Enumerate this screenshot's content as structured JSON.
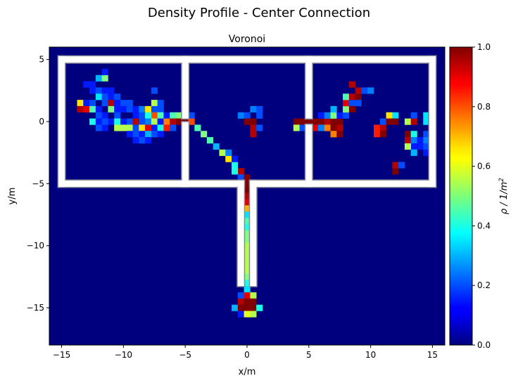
{
  "chart_data": {
    "type": "heatmap",
    "title": "Density Profile - Center Connection",
    "subtitle": "Voronoi",
    "xlabel": "x/m",
    "ylabel": "y/m",
    "xlim": [
      -16,
      16
    ],
    "ylim": [
      -18,
      6
    ],
    "xticks": [
      -15,
      -10,
      -5,
      0,
      5,
      10,
      15
    ],
    "yticks": [
      5,
      0,
      -5,
      -10,
      -15
    ],
    "grid": false,
    "colormap": "jet",
    "background_color": "#00007f",
    "wall_color": "#ffffff",
    "colorbar": {
      "label": "ρ / 1/m²",
      "label_base": "ρ / 1/m",
      "label_exponent": "2",
      "range": [
        0,
        1
      ],
      "ticks": [
        0.0,
        0.2,
        0.4,
        0.6,
        0.8,
        1.0
      ],
      "tick_labels": [
        "0.0",
        "0.2",
        "0.4",
        "0.6",
        "0.8",
        "1.0"
      ]
    },
    "geometry": {
      "left_room": {
        "x": [
          -15,
          -5
        ],
        "y": [
          -5,
          5
        ]
      },
      "center_room": {
        "x": [
          -5,
          5
        ],
        "y": [
          -5,
          5
        ]
      },
      "right_room": {
        "x": [
          5,
          15
        ],
        "y": [
          -5,
          5
        ]
      },
      "corridor": {
        "x": [
          -0.5,
          0.5
        ],
        "y": [
          -13,
          -5
        ]
      },
      "doors": [
        {
          "between": "left-center",
          "x": -5,
          "y": [
            -0.3,
            0.5
          ]
        },
        {
          "between": "center-right",
          "x": 5,
          "y": [
            -0.5,
            0.5
          ]
        },
        {
          "between": "center-corridor",
          "x": [
            -0.5,
            0.5
          ],
          "y": -5
        }
      ]
    },
    "cell_size": 0.5,
    "cells": [
      [
        -13.0,
        3.0,
        0.15
      ],
      [
        -12.5,
        3.0,
        0.15
      ],
      [
        -12.0,
        3.5,
        0.3
      ],
      [
        -11.5,
        3.5,
        0.5
      ],
      [
        -11.5,
        4.0,
        0.15
      ],
      [
        -12.5,
        2.5,
        0.15
      ],
      [
        -12.0,
        2.5,
        0.2
      ],
      [
        -11.5,
        2.5,
        0.15
      ],
      [
        -11.0,
        2.5,
        0.15
      ],
      [
        -12.0,
        2.0,
        0.35
      ],
      [
        -11.5,
        2.0,
        0.2
      ],
      [
        -11.0,
        2.0,
        0.15
      ],
      [
        -10.5,
        2.0,
        0.2
      ],
      [
        -7.5,
        2.5,
        0.2
      ],
      [
        -13.5,
        1.5,
        0.65
      ],
      [
        -13.0,
        1.5,
        0.15
      ],
      [
        -12.5,
        1.5,
        0.2
      ],
      [
        -11.5,
        1.5,
        0.2
      ],
      [
        -11.0,
        1.5,
        0.95
      ],
      [
        -10.5,
        1.5,
        0.15
      ],
      [
        -10.0,
        1.5,
        0.2
      ],
      [
        -9.5,
        1.5,
        0.2
      ],
      [
        -7.5,
        1.5,
        0.55
      ],
      [
        -7.0,
        1.5,
        0.2
      ],
      [
        -13.5,
        1.0,
        0.95
      ],
      [
        -13.0,
        1.0,
        0.9
      ],
      [
        -12.5,
        1.0,
        0.45
      ],
      [
        -12.0,
        1.0,
        0.15
      ],
      [
        -11.0,
        1.0,
        0.5
      ],
      [
        -10.5,
        1.0,
        0.15
      ],
      [
        -10.0,
        1.0,
        0.15
      ],
      [
        -9.5,
        1.0,
        0.2
      ],
      [
        -9.0,
        1.0,
        0.15
      ],
      [
        -8.5,
        1.0,
        0.25
      ],
      [
        -8.0,
        1.0,
        0.65
      ],
      [
        -7.5,
        1.0,
        0.2
      ],
      [
        -7.0,
        1.0,
        0.2
      ],
      [
        -12.0,
        0.5,
        0.2
      ],
      [
        -11.5,
        0.5,
        0.15
      ],
      [
        -10.5,
        0.5,
        0.2
      ],
      [
        -9.0,
        0.5,
        0.15
      ],
      [
        -8.5,
        0.5,
        0.2
      ],
      [
        -7.5,
        0.5,
        0.8
      ],
      [
        -7.0,
        0.5,
        0.45
      ],
      [
        -6.5,
        0.5,
        0.15
      ],
      [
        -5.5,
        0.5,
        0.5
      ],
      [
        -5.0,
        0.5,
        0.35
      ],
      [
        -4.5,
        0.5,
        0.2
      ],
      [
        -8.0,
        0.5,
        0.4
      ],
      [
        -6.0,
        0.5,
        0.45
      ],
      [
        -8.5,
        0.0,
        0.2
      ],
      [
        -9.5,
        0.0,
        0.2
      ],
      [
        -11.0,
        0.0,
        0.15
      ],
      [
        -12.5,
        0.0,
        0.4
      ],
      [
        -12.0,
        0.0,
        0.15
      ],
      [
        -11.5,
        0.0,
        0.2
      ],
      [
        -10.5,
        0.0,
        0.4
      ],
      [
        -10.0,
        0.0,
        0.15
      ],
      [
        -9.0,
        0.0,
        0.95
      ],
      [
        -8.0,
        0.0,
        0.25
      ],
      [
        -7.5,
        0.0,
        0.55
      ],
      [
        -7.0,
        0.0,
        0.15
      ],
      [
        -6.5,
        0.0,
        0.75
      ],
      [
        -6.0,
        0.0,
        0.95
      ],
      [
        -5.5,
        0.0,
        1.0
      ],
      [
        -5.0,
        0.0,
        1.0
      ],
      [
        -4.5,
        0.0,
        0.8
      ],
      [
        -12.0,
        -0.5,
        0.2
      ],
      [
        -11.5,
        -0.5,
        0.15
      ],
      [
        -10.5,
        -0.5,
        0.55
      ],
      [
        -10.0,
        -0.5,
        0.55
      ],
      [
        -9.5,
        -0.5,
        0.55
      ],
      [
        -9.0,
        -0.5,
        0.2
      ],
      [
        -8.5,
        -0.5,
        0.65
      ],
      [
        -8.0,
        -0.5,
        0.9
      ],
      [
        -7.5,
        -0.5,
        0.15
      ],
      [
        -7.0,
        -0.5,
        0.4
      ],
      [
        -6.5,
        -0.5,
        0.85
      ],
      [
        -6.0,
        -0.5,
        0.2
      ],
      [
        -4.0,
        -0.5,
        0.45
      ],
      [
        -9.5,
        -1.0,
        0.15
      ],
      [
        -9.0,
        -1.0,
        0.2
      ],
      [
        -8.5,
        -1.0,
        0.15
      ],
      [
        -8.0,
        -1.0,
        0.3
      ],
      [
        -7.5,
        -1.0,
        0.2
      ],
      [
        -7.0,
        -1.0,
        0.15
      ],
      [
        -3.5,
        -1.0,
        0.5
      ],
      [
        -9.0,
        -1.5,
        0.15
      ],
      [
        -8.5,
        -1.5,
        0.2
      ],
      [
        -8.0,
        -1.5,
        0.15
      ],
      [
        -3.0,
        -1.5,
        0.45
      ],
      [
        -2.5,
        -2.0,
        0.3
      ],
      [
        -2.0,
        -2.5,
        0.55
      ],
      [
        -1.5,
        -3.0,
        0.65
      ],
      [
        -1.5,
        -2.5,
        0.25
      ],
      [
        -1.0,
        -3.5,
        0.4
      ],
      [
        -1.0,
        -3.0,
        0.15
      ],
      [
        -0.5,
        -4.0,
        0.95
      ],
      [
        -1.0,
        -4.0,
        0.4
      ],
      [
        -0.5,
        -4.5,
        0.2
      ],
      [
        0.0,
        -4.5,
        1.0
      ],
      [
        0.0,
        -5.0,
        1.0
      ],
      [
        0.0,
        -5.5,
        1.0
      ],
      [
        0.0,
        -6.0,
        0.95
      ],
      [
        0.0,
        -6.5,
        0.9
      ],
      [
        0.0,
        -7.0,
        0.7
      ],
      [
        0.0,
        -7.5,
        0.35
      ],
      [
        0.0,
        -8.0,
        0.45
      ],
      [
        0.0,
        -8.5,
        0.4
      ],
      [
        0.0,
        -9.0,
        0.5
      ],
      [
        0.0,
        -9.5,
        0.5
      ],
      [
        0.0,
        -10.0,
        0.55
      ],
      [
        0.0,
        -10.5,
        0.55
      ],
      [
        0.0,
        -11.0,
        0.55
      ],
      [
        0.0,
        -11.5,
        0.55
      ],
      [
        0.0,
        -12.0,
        0.55
      ],
      [
        0.0,
        -12.5,
        0.5
      ],
      [
        0.0,
        -13.0,
        0.4
      ],
      [
        0.0,
        -13.5,
        0.35
      ],
      [
        -0.5,
        -14.0,
        0.2
      ],
      [
        0.0,
        -14.0,
        0.9
      ],
      [
        0.5,
        -14.0,
        0.55
      ],
      [
        -0.5,
        -14.5,
        0.95
      ],
      [
        0.0,
        -14.5,
        1.0
      ],
      [
        0.5,
        -14.5,
        1.0
      ],
      [
        -1.0,
        -15.0,
        0.3
      ],
      [
        -0.5,
        -15.0,
        1.0
      ],
      [
        0.0,
        -15.0,
        1.0
      ],
      [
        0.5,
        -15.0,
        1.0
      ],
      [
        1.0,
        -15.0,
        0.4
      ],
      [
        -0.5,
        -15.5,
        0.15
      ],
      [
        0.0,
        -15.5,
        0.6
      ],
      [
        0.5,
        -15.5,
        0.55
      ],
      [
        -0.5,
        0.5,
        0.25
      ],
      [
        0.0,
        0.5,
        0.2
      ],
      [
        1.0,
        0.5,
        0.2
      ],
      [
        0.5,
        1.0,
        0.25
      ],
      [
        1.0,
        1.0,
        0.2
      ],
      [
        0.0,
        0.0,
        1.0
      ],
      [
        0.5,
        0.0,
        1.0
      ],
      [
        0.5,
        -0.5,
        0.95
      ],
      [
        0.5,
        -1.0,
        0.95
      ],
      [
        1.0,
        -0.5,
        0.2
      ],
      [
        4.0,
        0.0,
        1.0
      ],
      [
        4.5,
        0.0,
        1.0
      ],
      [
        5.0,
        0.0,
        1.0
      ],
      [
        5.5,
        0.0,
        1.0
      ],
      [
        6.0,
        0.0,
        1.0
      ],
      [
        6.5,
        0.0,
        0.95
      ],
      [
        7.0,
        0.0,
        1.0
      ],
      [
        7.5,
        0.0,
        1.0
      ],
      [
        4.0,
        -0.5,
        0.55
      ],
      [
        4.5,
        -0.5,
        0.2
      ],
      [
        5.0,
        -0.5,
        0.9
      ],
      [
        5.5,
        -0.5,
        0.9
      ],
      [
        6.0,
        -0.5,
        0.25
      ],
      [
        6.5,
        -0.5,
        0.75
      ],
      [
        7.0,
        -0.5,
        1.0
      ],
      [
        7.5,
        -0.5,
        0.95
      ],
      [
        7.0,
        -1.0,
        0.75
      ],
      [
        7.5,
        -1.0,
        1.0
      ],
      [
        6.0,
        0.5,
        0.15
      ],
      [
        6.5,
        0.5,
        0.25
      ],
      [
        7.0,
        0.5,
        0.5
      ],
      [
        7.5,
        0.5,
        0.15
      ],
      [
        7.0,
        1.0,
        0.3
      ],
      [
        8.0,
        0.5,
        0.2
      ],
      [
        8.0,
        1.0,
        0.5
      ],
      [
        8.0,
        1.5,
        0.9
      ],
      [
        8.5,
        1.5,
        0.2
      ],
      [
        8.5,
        1.0,
        1.0
      ],
      [
        8.0,
        2.0,
        0.45
      ],
      [
        8.5,
        2.0,
        0.95
      ],
      [
        9.0,
        2.0,
        1.0
      ],
      [
        9.0,
        2.5,
        0.95
      ],
      [
        9.5,
        2.5,
        0.2
      ],
      [
        8.5,
        3.0,
        0.95
      ],
      [
        10.0,
        2.5,
        0.25
      ],
      [
        9.0,
        1.5,
        0.2
      ],
      [
        10.5,
        -0.5,
        0.85
      ],
      [
        10.5,
        -1.0,
        0.85
      ],
      [
        11.0,
        -0.5,
        0.95
      ],
      [
        11.0,
        -1.0,
        1.0
      ],
      [
        11.0,
        0.0,
        0.2
      ],
      [
        11.5,
        0.5,
        0.65
      ],
      [
        11.5,
        0.0,
        1.0
      ],
      [
        12.0,
        0.5,
        0.35
      ],
      [
        12.0,
        0.0,
        1.0
      ],
      [
        13.0,
        0.0,
        0.55
      ],
      [
        13.5,
        0.5,
        0.2
      ],
      [
        13.5,
        0.0,
        0.95
      ],
      [
        13.0,
        -1.0,
        1.0
      ],
      [
        13.0,
        -1.5,
        0.95
      ],
      [
        13.5,
        -1.0,
        0.4
      ],
      [
        13.5,
        -1.5,
        0.25
      ],
      [
        13.5,
        -2.0,
        0.15
      ],
      [
        13.0,
        -2.0,
        0.55
      ],
      [
        14.0,
        -1.5,
        0.15
      ],
      [
        14.0,
        -2.0,
        0.15
      ],
      [
        13.5,
        -2.5,
        0.3
      ],
      [
        12.0,
        -3.5,
        0.95
      ],
      [
        12.0,
        -4.0,
        1.0
      ],
      [
        12.5,
        -3.5,
        0.2
      ],
      [
        14.5,
        0.5,
        0.35
      ],
      [
        14.5,
        0.0,
        0.35
      ],
      [
        15.0,
        3.0,
        0.15
      ],
      [
        15.0,
        2.5,
        0.35
      ],
      [
        15.0,
        2.0,
        0.2
      ],
      [
        15.0,
        1.5,
        0.35
      ],
      [
        15.0,
        1.0,
        0.2
      ],
      [
        15.0,
        0.5,
        1.0
      ],
      [
        15.0,
        0.0,
        1.0
      ],
      [
        15.0,
        -0.5,
        0.6
      ],
      [
        15.0,
        -1.0,
        0.3
      ],
      [
        15.0,
        -1.5,
        0.25
      ],
      [
        15.0,
        -2.0,
        0.2
      ],
      [
        15.0,
        -2.5,
        0.15
      ],
      [
        14.5,
        -1.0,
        0.2
      ],
      [
        14.5,
        -1.5,
        0.25
      ],
      [
        14.5,
        -2.0,
        0.2
      ],
      [
        14.5,
        -2.5,
        0.15
      ]
    ]
  }
}
